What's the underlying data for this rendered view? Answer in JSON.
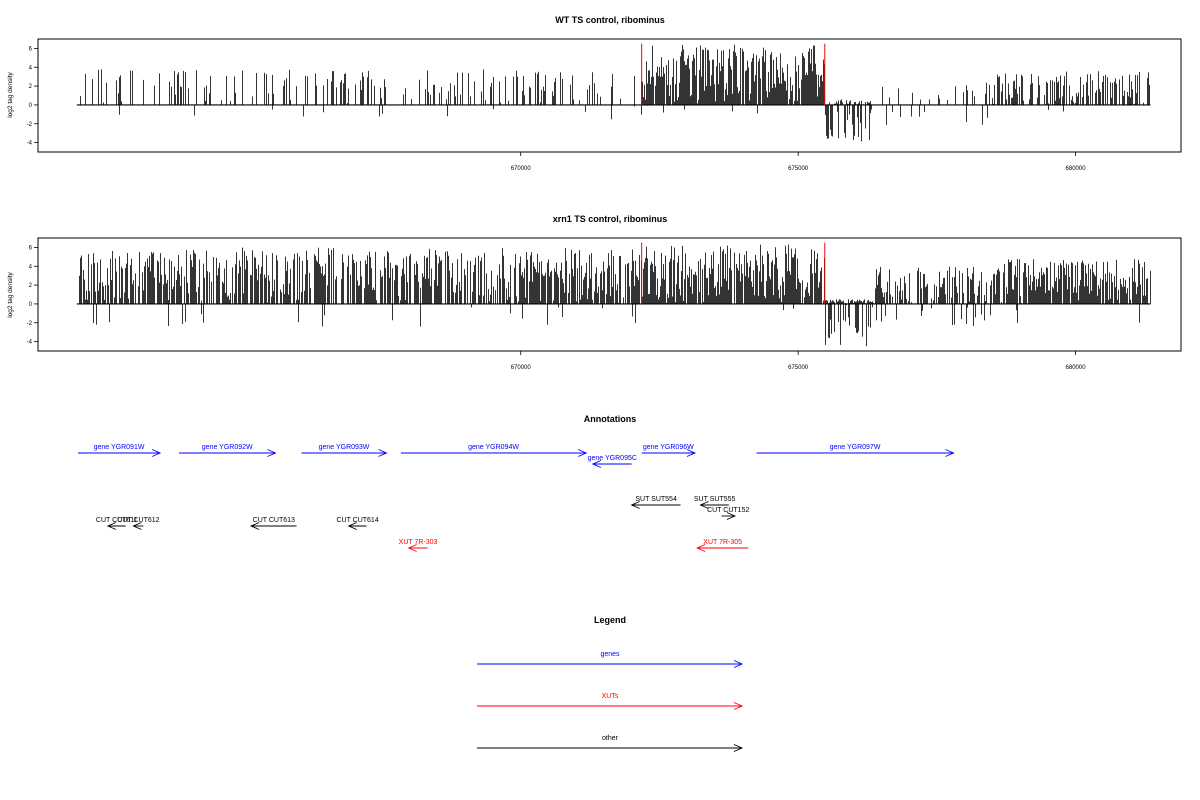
{
  "chart_data": [
    {
      "type": "bar",
      "title": "WT TS control, ribominus",
      "ylabel": "log2 tag density",
      "xlim": [
        661300,
        681900
      ],
      "ylim": [
        -5,
        7
      ],
      "yticks": [
        -4,
        -2,
        0,
        2,
        4,
        6
      ],
      "xticks": [
        670000,
        675000,
        680000
      ],
      "xtick_labels": [
        "670000",
        "675000",
        "680000"
      ],
      "series_color": "#000000",
      "markers": [
        672180,
        675480
      ],
      "marker_color": "#ff0000",
      "signal_regions": [
        {
          "from": 662000,
          "to": 672180,
          "density": 0.25,
          "pos_max": 3.8,
          "neg_prob": 0.05,
          "neg_max": 1.6
        },
        {
          "from": 672180,
          "to": 675480,
          "density": 0.95,
          "pos_max": 6.4,
          "neg_prob": 0.02,
          "neg_max": 1.2
        },
        {
          "from": 675480,
          "to": 676300,
          "density": 0.6,
          "pos_max": 0.6,
          "neg_prob": 0.85,
          "neg_max": 4.2
        },
        {
          "from": 676300,
          "to": 678500,
          "density": 0.12,
          "pos_max": 2.4,
          "neg_prob": 0.2,
          "neg_max": 2.2
        },
        {
          "from": 678500,
          "to": 681350,
          "density": 0.55,
          "pos_max": 3.6,
          "neg_prob": 0.03,
          "neg_max": 1.0
        }
      ]
    },
    {
      "type": "bar",
      "title": "xrn1 TS control, ribominus",
      "ylabel": "log2 tag density",
      "xlim": [
        661300,
        681900
      ],
      "ylim": [
        -5,
        7
      ],
      "yticks": [
        -4,
        -2,
        0,
        2,
        4,
        6
      ],
      "xticks": [
        670000,
        675000,
        680000
      ],
      "xtick_labels": [
        "670000",
        "675000",
        "680000"
      ],
      "series_color": "#000000",
      "markers": [
        672180,
        675480
      ],
      "marker_color": "#ff0000",
      "signal_regions": [
        {
          "from": 662000,
          "to": 672180,
          "density": 0.75,
          "pos_max": 6.0,
          "neg_prob": 0.06,
          "neg_max": 2.5
        },
        {
          "from": 672180,
          "to": 675480,
          "density": 0.95,
          "pos_max": 6.3,
          "neg_prob": 0.02,
          "neg_max": 1.0
        },
        {
          "from": 675480,
          "to": 676350,
          "density": 0.95,
          "pos_max": 0.5,
          "neg_prob": 0.95,
          "neg_max": 4.5
        },
        {
          "from": 676350,
          "to": 678500,
          "density": 0.55,
          "pos_max": 4.0,
          "neg_prob": 0.25,
          "neg_max": 2.5
        },
        {
          "from": 678500,
          "to": 681350,
          "density": 0.85,
          "pos_max": 4.8,
          "neg_prob": 0.08,
          "neg_max": 2.2
        }
      ]
    }
  ],
  "annotations": {
    "title": "Annotations",
    "xlim": [
      661300,
      681900
    ],
    "features": [
      {
        "label": "gene YGR091W",
        "start": 662000,
        "end": 663500,
        "strand": "+",
        "color": "#0000ff",
        "row": 0
      },
      {
        "label": "gene YGR092W",
        "start": 663840,
        "end": 665580,
        "strand": "+",
        "color": "#0000ff",
        "row": 0
      },
      {
        "label": "gene YGR093W",
        "start": 666050,
        "end": 667580,
        "strand": "+",
        "color": "#0000ff",
        "row": 0
      },
      {
        "label": "gene YGR094W",
        "start": 667840,
        "end": 671180,
        "strand": "+",
        "color": "#0000ff",
        "row": 0
      },
      {
        "label": "gene YGR095C",
        "start": 671300,
        "end": 672000,
        "strand": "-",
        "color": "#0000ff",
        "row": 1
      },
      {
        "label": "gene YGR096W",
        "start": 672180,
        "end": 673140,
        "strand": "+",
        "color": "#0000ff",
        "row": 0
      },
      {
        "label": "gene YGR097W",
        "start": 674250,
        "end": 677800,
        "strand": "+",
        "color": "#0000ff",
        "row": 0
      },
      {
        "label": "SUT SUT554",
        "start": 672000,
        "end": 672880,
        "strand": "-",
        "color": "#000000",
        "row": 2
      },
      {
        "label": "SUT SUT555",
        "start": 673240,
        "end": 673750,
        "strand": "-",
        "color": "#000000",
        "row": 2
      },
      {
        "label": "CUT CUT152",
        "start": 673620,
        "end": 673860,
        "strand": "+",
        "color": "#000000",
        "row": 3
      },
      {
        "label": "CUT CUT611",
        "start": 662560,
        "end": 662880,
        "strand": "-",
        "color": "#000000",
        "row": 4
      },
      {
        "label": "CUT CUT612",
        "start": 663020,
        "end": 663200,
        "strand": "-",
        "color": "#000000",
        "row": 4
      },
      {
        "label": "CUT CUT613",
        "start": 665140,
        "end": 665960,
        "strand": "-",
        "color": "#000000",
        "row": 4
      },
      {
        "label": "CUT CUT614",
        "start": 666900,
        "end": 667220,
        "strand": "-",
        "color": "#000000",
        "row": 4
      },
      {
        "label": "XUT 7R-303",
        "start": 667980,
        "end": 668320,
        "strand": "-",
        "color": "#ff0000",
        "row": 5
      },
      {
        "label": "XUT 7R-305",
        "start": 673180,
        "end": 674100,
        "strand": "-",
        "color": "#ff0000",
        "row": 5
      }
    ]
  },
  "legend": {
    "title": "Legend",
    "items": [
      {
        "label": "genes",
        "color": "#0000ff"
      },
      {
        "label": "XUTs",
        "color": "#ff0000"
      },
      {
        "label": "other",
        "color": "#000000"
      }
    ]
  }
}
